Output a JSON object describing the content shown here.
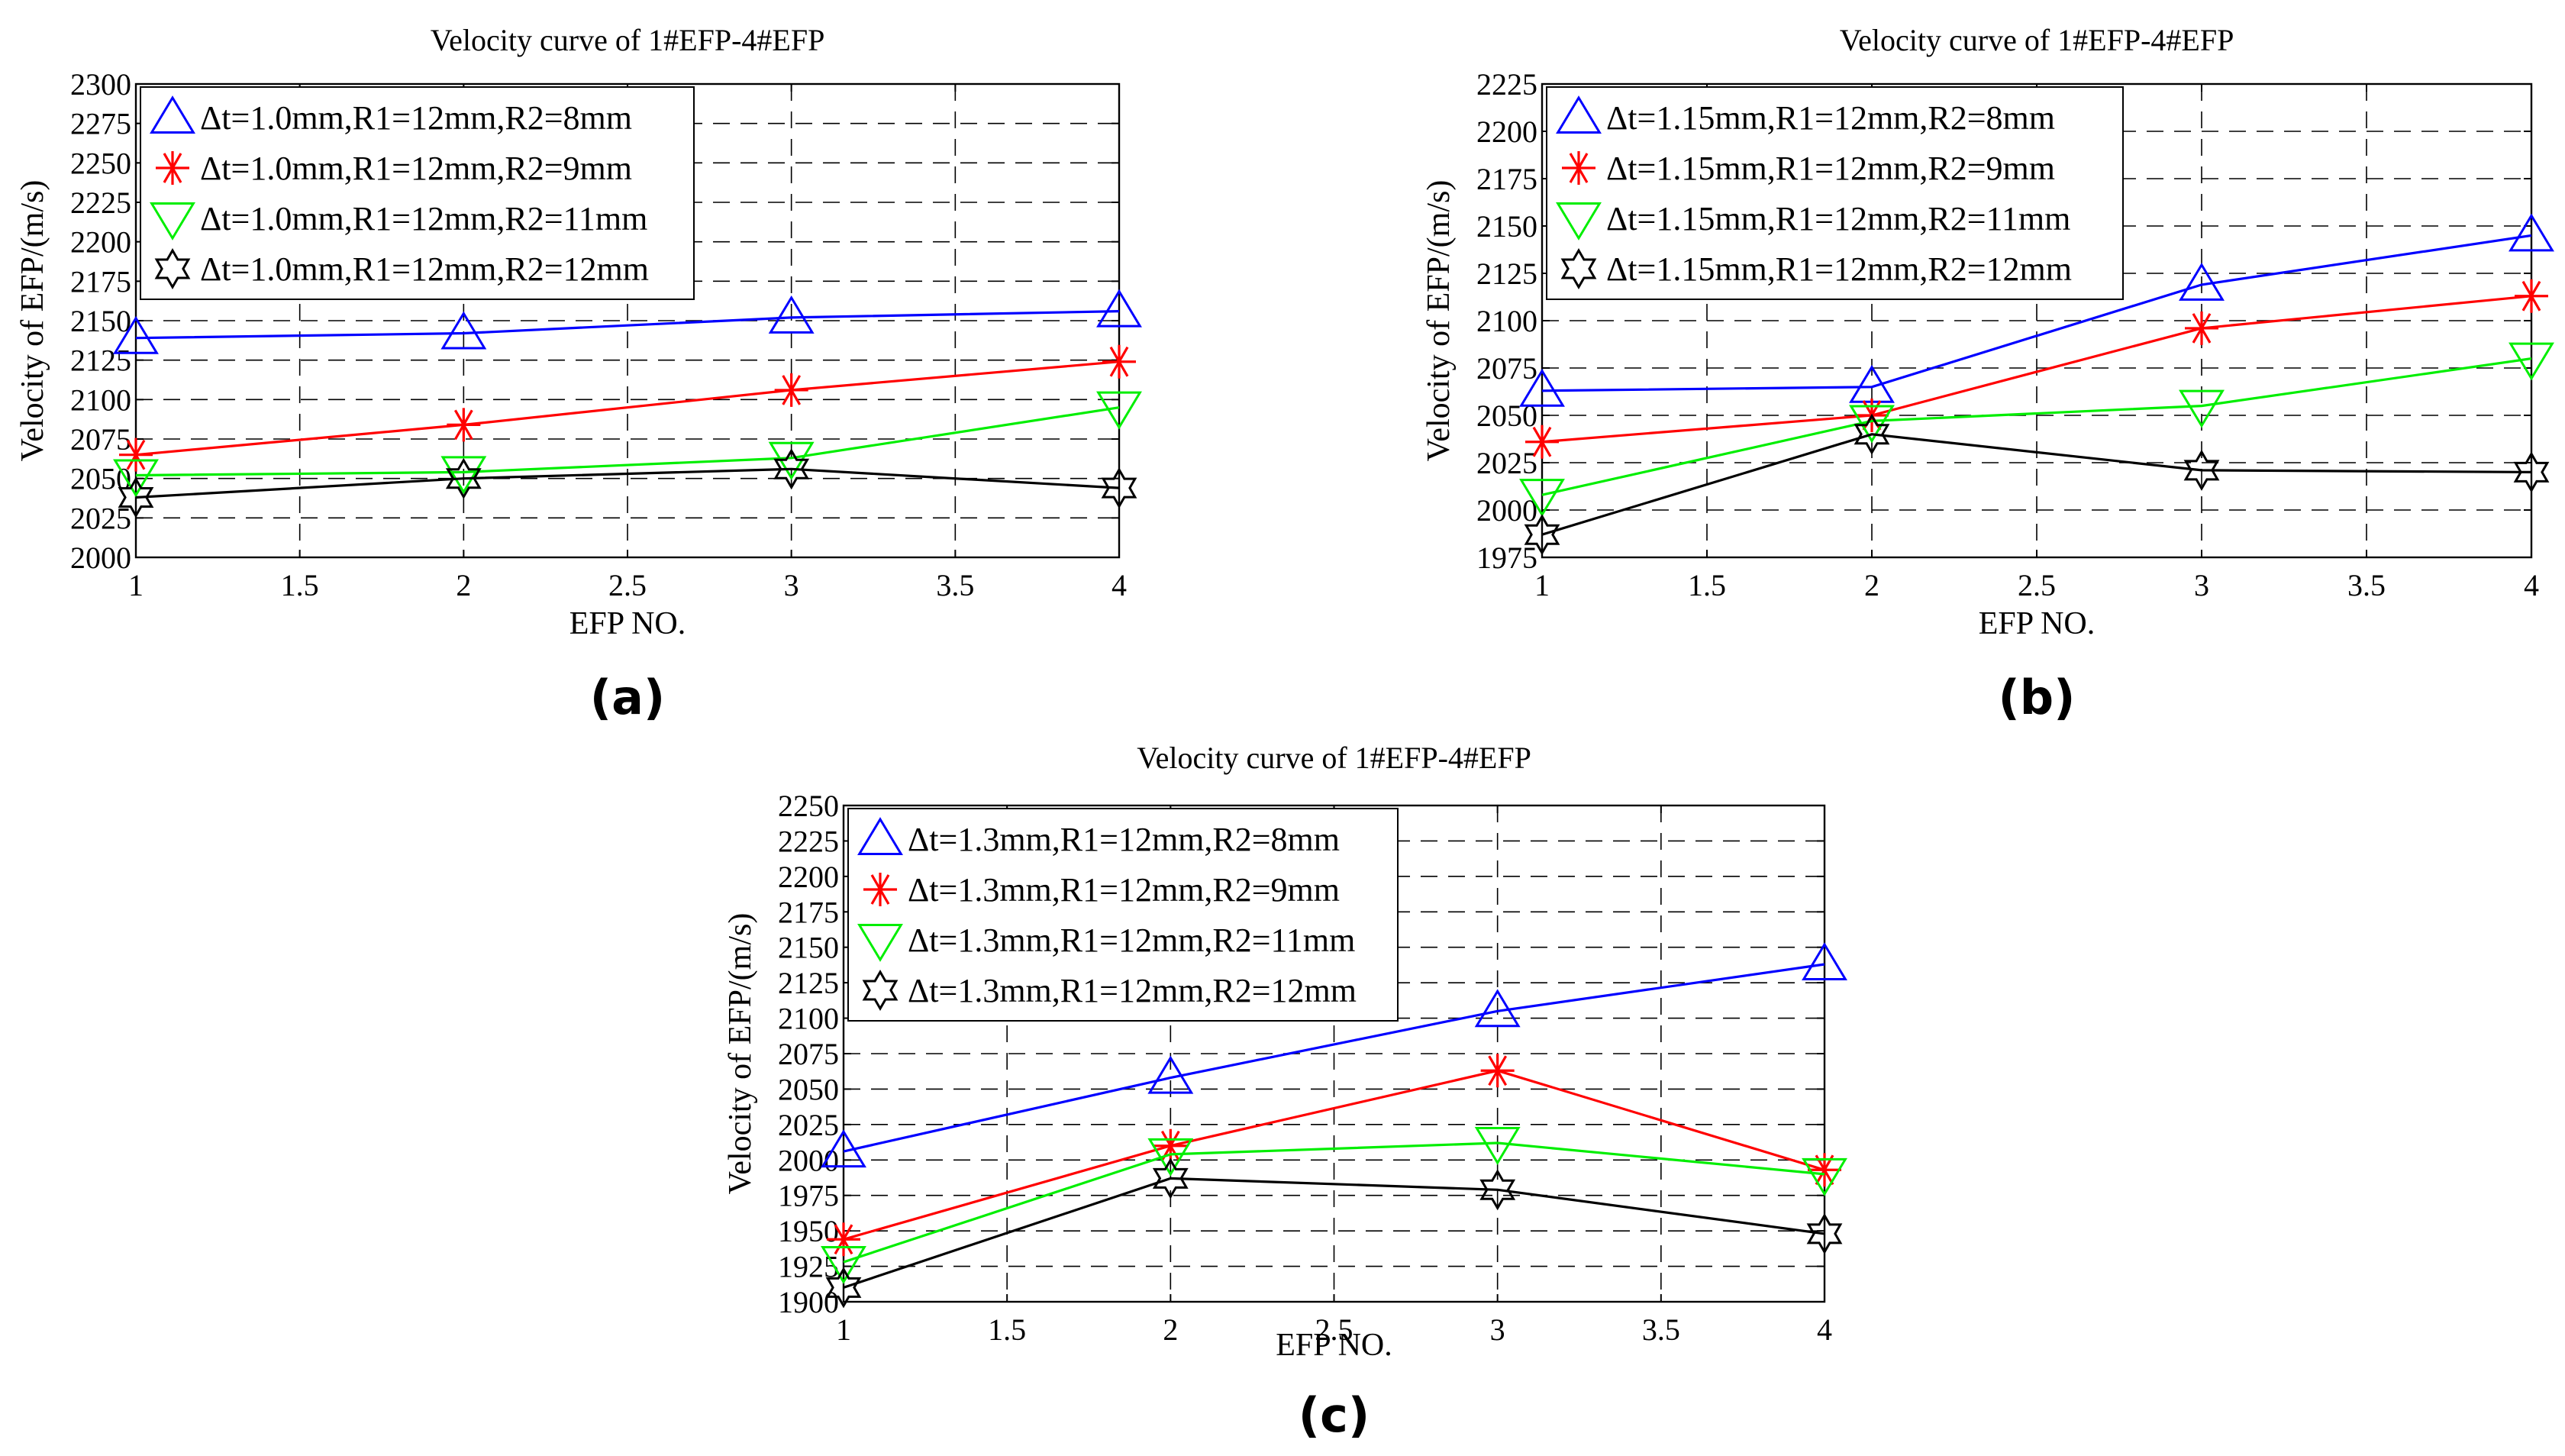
{
  "chart_data": [
    {
      "type": "line",
      "title": "Velocity curve of 1#EFP-4#EFP",
      "xlabel": "EFP NO.",
      "ylabel": "Velocity of EFP/(m/s)",
      "panel_label": "(a)",
      "x": [
        1,
        2,
        3,
        4
      ],
      "xticks": [
        "1",
        "1.5",
        "2",
        "2.5",
        "3",
        "3.5",
        "4"
      ],
      "xlim": [
        1,
        4
      ],
      "ylim": [
        2000,
        2300
      ],
      "yticks": [
        "2000",
        "2025",
        "2050",
        "2075",
        "2100",
        "2125",
        "2150",
        "2175",
        "2200",
        "2225",
        "2250",
        "2275",
        "2300"
      ],
      "grid": true,
      "legend_position": "top-left",
      "series": [
        {
          "name": "Δt=1.0mm,R1=12mm,R2=8mm",
          "color": "#0000ff",
          "marker": "triangle-up",
          "values": [
            2139,
            2142,
            2152,
            2156
          ]
        },
        {
          "name": "Δt=1.0mm,R1=12mm,R2=9mm",
          "color": "#ff0000",
          "marker": "asterisk",
          "values": [
            2065,
            2084,
            2106,
            2124
          ]
        },
        {
          "name": "Δt=1.0mm,R1=12mm,R2=11mm",
          "color": "#00ee00",
          "marker": "triangle-down",
          "values": [
            2052,
            2054,
            2063,
            2095
          ]
        },
        {
          "name": "Δt=1.0mm,R1=12mm,R2=12mm",
          "color": "#000000",
          "marker": "hexagram",
          "values": [
            2038,
            2050,
            2056,
            2044
          ]
        }
      ]
    },
    {
      "type": "line",
      "title": "Velocity curve of 1#EFP-4#EFP",
      "xlabel": "EFP NO.",
      "ylabel": "Velocity of EFP/(m/s)",
      "panel_label": "(b)",
      "x": [
        1,
        2,
        3,
        4
      ],
      "xticks": [
        "1",
        "1.5",
        "2",
        "2.5",
        "3",
        "3.5",
        "4"
      ],
      "xlim": [
        1,
        4
      ],
      "ylim": [
        1975,
        2225
      ],
      "yticks": [
        "1975",
        "2000",
        "2025",
        "2050",
        "2075",
        "2100",
        "2125",
        "2150",
        "2175",
        "2200",
        "2225"
      ],
      "grid": true,
      "legend_position": "top-left",
      "series": [
        {
          "name": "Δt=1.15mm,R1=12mm,R2=8mm",
          "color": "#0000ff",
          "marker": "triangle-up",
          "values": [
            2063,
            2065,
            2119,
            2145
          ]
        },
        {
          "name": "Δt=1.15mm,R1=12mm,R2=9mm",
          "color": "#ff0000",
          "marker": "asterisk",
          "values": [
            2036,
            2050,
            2096,
            2113
          ]
        },
        {
          "name": "Δt=1.15mm,R1=12mm,R2=11mm",
          "color": "#00ee00",
          "marker": "triangle-down",
          "values": [
            2008,
            2047,
            2055,
            2080
          ]
        },
        {
          "name": "Δt=1.15mm,R1=12mm,R2=12mm",
          "color": "#000000",
          "marker": "hexagram",
          "values": [
            1987,
            2040,
            2021,
            2020
          ]
        }
      ]
    },
    {
      "type": "line",
      "title": "Velocity curve of 1#EFP-4#EFP",
      "xlabel": "EFP NO.",
      "ylabel": "Velocity of EFP/(m/s)",
      "panel_label": "(c)",
      "x": [
        1,
        2,
        3,
        4
      ],
      "xticks": [
        "1",
        "1.5",
        "2",
        "2.5",
        "3",
        "3.5",
        "4"
      ],
      "xlim": [
        1,
        4
      ],
      "ylim": [
        1900,
        2250
      ],
      "yticks": [
        "1900",
        "1925",
        "1950",
        "1975",
        "2000",
        "2025",
        "2050",
        "2075",
        "2100",
        "2125",
        "2150",
        "2175",
        "2200",
        "2225",
        "2250"
      ],
      "grid": true,
      "legend_position": "top-left",
      "series": [
        {
          "name": "Δt=1.3mm,R1=12mm,R2=8mm",
          "color": "#0000ff",
          "marker": "triangle-up",
          "values": [
            2006,
            2058,
            2105,
            2138
          ]
        },
        {
          "name": "Δt=1.3mm,R1=12mm,R2=9mm",
          "color": "#ff0000",
          "marker": "asterisk",
          "values": [
            1944,
            2010,
            2063,
            1993
          ]
        },
        {
          "name": "Δt=1.3mm,R1=12mm,R2=11mm",
          "color": "#00ee00",
          "marker": "triangle-down",
          "values": [
            1928,
            2004,
            2012,
            1990
          ]
        },
        {
          "name": "Δt=1.3mm,R1=12mm,R2=12mm",
          "color": "#000000",
          "marker": "hexagram",
          "values": [
            1910,
            1987,
            1979,
            1948
          ]
        }
      ]
    }
  ]
}
